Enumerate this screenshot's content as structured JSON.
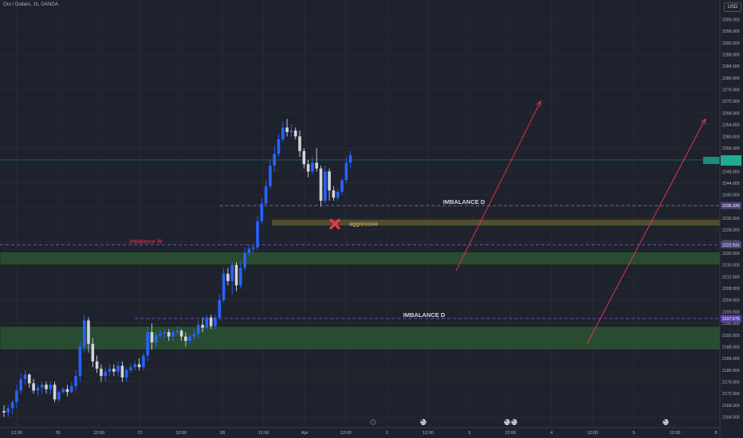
{
  "symbol_title": "Oro / Dollaro, 1h, OANDA",
  "currency": "USD",
  "colors": {
    "background": "#1e222d",
    "grid": "#262a34",
    "up": "#2962ff",
    "down": "#d1d4dc",
    "zone": "#2e5a33",
    "aggressive_zone": "#5b5533",
    "dashed": "#7e57c2",
    "imbalance_w": "#f23645",
    "arrow": "#f23645",
    "current_price": "#22ab94",
    "axis_text": "#b2b5be"
  },
  "chart_data": {
    "type": "candlestick",
    "y_ticks": [
      "2164.000",
      "2168.000",
      "2172.000",
      "2176.000",
      "2180.000",
      "2184.000",
      "2188.000",
      "2192.000",
      "2196.000",
      "2200.000",
      "2204.000",
      "2208.000",
      "2212.000",
      "2216.000",
      "2220.000",
      "2224.000",
      "2228.000",
      "2232.000",
      "2236.000",
      "2240.000",
      "2244.000",
      "2248.000",
      "2252.000",
      "2256.000",
      "2260.000",
      "2264.000",
      "2268.000",
      "2272.000",
      "2276.000",
      "2280.000",
      "2284.000",
      "2288.000",
      "2292.000",
      "2296.000",
      "2300.000"
    ],
    "ylim": [
      2162.5,
      2301.5
    ],
    "x_ticks": [
      "12:00",
      "26",
      "12:00",
      "27",
      "12:00",
      "28",
      "12:00",
      "Apr",
      "12:00",
      "2",
      "12:00",
      "3",
      "12:00",
      "4",
      "12:00",
      "5",
      "12:00",
      "8"
    ],
    "x_range": [
      0,
      90
    ],
    "candles": [
      [
        0,
        2166,
        2168,
        2164,
        2165.5
      ],
      [
        1,
        2165.5,
        2168,
        2164,
        2167
      ],
      [
        2,
        2167,
        2170,
        2165,
        2169
      ],
      [
        3,
        2169,
        2175,
        2167,
        2173
      ],
      [
        4,
        2173,
        2179,
        2172,
        2177
      ],
      [
        5,
        2177,
        2180,
        2175,
        2178.5
      ],
      [
        6,
        2178.5,
        2179,
        2174,
        2175.5
      ],
      [
        7,
        2175.5,
        2177,
        2172,
        2173
      ],
      [
        8,
        2173,
        2175,
        2171,
        2174
      ],
      [
        9,
        2174,
        2176,
        2172,
        2175
      ],
      [
        10,
        2175,
        2176,
        2172,
        2173.5
      ],
      [
        11,
        2173.5,
        2176,
        2172,
        2175
      ],
      [
        12,
        2175,
        2176,
        2169,
        2170
      ],
      [
        13,
        2170,
        2173,
        2169,
        2172.5
      ],
      [
        14,
        2172.5,
        2174,
        2172,
        2173.5
      ],
      [
        15,
        2173.5,
        2175,
        2171,
        2172.5
      ],
      [
        16,
        2172.5,
        2176,
        2172,
        2174.5
      ],
      [
        17,
        2174.5,
        2180,
        2173,
        2178
      ],
      [
        18,
        2178,
        2190,
        2176,
        2188
      ],
      [
        19,
        2188,
        2199,
        2186,
        2197
      ],
      [
        20,
        2197,
        2198,
        2186,
        2189
      ],
      [
        21,
        2189,
        2191,
        2181,
        2183
      ],
      [
        22,
        2183,
        2185,
        2179,
        2180.5
      ],
      [
        23,
        2180.5,
        2182,
        2176,
        2178
      ],
      [
        24,
        2178,
        2181,
        2176,
        2179.5
      ],
      [
        25,
        2179.5,
        2182,
        2178,
        2180.5
      ],
      [
        26,
        2180.5,
        2182,
        2178,
        2179.5
      ],
      [
        27,
        2179.5,
        2183,
        2178,
        2181.5
      ],
      [
        28,
        2181.5,
        2183,
        2176,
        2177.5
      ],
      [
        29,
        2177.5,
        2181,
        2176,
        2180
      ],
      [
        30,
        2180,
        2182,
        2179,
        2181
      ],
      [
        31,
        2181,
        2183,
        2180,
        2182
      ],
      [
        32,
        2182,
        2184,
        2180,
        2181
      ],
      [
        33,
        2181,
        2186,
        2180,
        2185
      ],
      [
        34,
        2185,
        2195,
        2183,
        2193
      ],
      [
        35,
        2193,
        2196,
        2187,
        2189.5
      ],
      [
        36,
        2189.5,
        2193,
        2188,
        2192
      ],
      [
        37,
        2192,
        2194,
        2191,
        2192.5
      ],
      [
        38,
        2192.5,
        2194,
        2191,
        2193
      ],
      [
        39,
        2193,
        2194,
        2190,
        2191.5
      ],
      [
        40,
        2191.5,
        2194,
        2190,
        2193
      ],
      [
        41,
        2193,
        2195,
        2192,
        2193.5
      ],
      [
        42,
        2193.5,
        2194,
        2190,
        2191.5
      ],
      [
        43,
        2191.5,
        2193,
        2188,
        2190
      ],
      [
        44,
        2190,
        2192,
        2189,
        2191.5
      ],
      [
        45,
        2191.5,
        2194,
        2190,
        2192.5
      ],
      [
        46,
        2192.5,
        2197,
        2191,
        2195.5
      ],
      [
        47,
        2195.5,
        2198,
        2193,
        2194.5
      ],
      [
        48,
        2194.5,
        2199,
        2194,
        2198
      ],
      [
        49,
        2198,
        2199,
        2194,
        2195
      ],
      [
        50,
        2195,
        2199,
        2194,
        2198
      ],
      [
        51,
        2198,
        2206,
        2197,
        2204
      ],
      [
        52,
        2204,
        2215,
        2203,
        2213
      ],
      [
        53,
        2213,
        2215,
        2209,
        2210.5
      ],
      [
        54,
        2210.5,
        2217,
        2206,
        2216
      ],
      [
        55,
        2216,
        2217,
        2207,
        2209
      ],
      [
        56,
        2209,
        2217,
        2208,
        2215
      ],
      [
        57,
        2215,
        2222,
        2214,
        2220
      ],
      [
        58,
        2220,
        2223,
        2219,
        2221.5
      ],
      [
        59,
        2221.5,
        2223,
        2220,
        2222
      ],
      [
        60,
        2222,
        2233,
        2221,
        2231
      ],
      [
        61,
        2231,
        2239,
        2230,
        2237
      ],
      [
        62,
        2237,
        2245,
        2236,
        2243
      ],
      [
        63,
        2243,
        2252,
        2242,
        2250
      ],
      [
        64,
        2250,
        2257,
        2248,
        2254
      ],
      [
        65,
        2254,
        2261,
        2253,
        2259
      ],
      [
        66,
        2259,
        2265,
        2258,
        2263
      ],
      [
        67,
        2263,
        2266,
        2260,
        2261.5
      ],
      [
        68,
        2261.5,
        2264,
        2260,
        2262
      ],
      [
        69,
        2262,
        2263,
        2259,
        2260
      ],
      [
        70,
        2260,
        2262,
        2253,
        2255
      ],
      [
        71,
        2255,
        2256,
        2249,
        2250.5
      ],
      [
        72,
        2250.5,
        2252,
        2246,
        2248
      ],
      [
        73,
        2248,
        2253,
        2247,
        2251
      ],
      [
        74,
        2251,
        2256,
        2248,
        2249
      ],
      [
        75,
        2249,
        2250,
        2236,
        2238
      ],
      [
        76,
        2238,
        2250,
        2237,
        2248
      ],
      [
        77,
        2248,
        2249,
        2238,
        2241.5
      ],
      [
        78,
        2241.5,
        2243,
        2238,
        2239
      ],
      [
        79,
        2239,
        2242,
        2238,
        2241
      ],
      [
        80,
        2241,
        2246,
        2240,
        2245
      ],
      [
        81,
        2245,
        2253,
        2244,
        2251
      ],
      [
        82,
        2251,
        2255,
        2249,
        2253.5
      ]
    ],
    "current_price": 2251.9,
    "labeled_prices": [
      "2236.330",
      "2222.915",
      "2197.675"
    ],
    "annotations": [
      {
        "text": "IMBALANCE D",
        "type": "dashed-line",
        "price": 2236.33,
        "from_candle": 51,
        "to_candle": 150
      },
      {
        "text": "imbalance W",
        "type": "dashed-line",
        "price": 2222.915,
        "from_candle": 0,
        "to_candle": 150
      },
      {
        "text": "IMBALANCE D",
        "type": "dashed-line",
        "price": 2197.675,
        "from_candle": 31,
        "to_candle": 150
      },
      {
        "text": "aggressive",
        "type": "zone",
        "from_price": 2229.5,
        "to_price": 2231.5,
        "from_candle": 64,
        "to_candle": 150
      },
      {
        "type": "zone",
        "from_price": 2216,
        "to_price": 2220.5,
        "from_candle": 0,
        "to_candle": 150
      },
      {
        "type": "zone",
        "from_price": 2187,
        "to_price": 2195,
        "from_candle": 0,
        "to_candle": 150
      }
    ],
    "arrows": [
      {
        "from": [
          107,
          2214
        ],
        "to": [
          127,
          2272
        ]
      },
      {
        "from": [
          138,
          2189
        ],
        "to": [
          166,
          2266
        ]
      }
    ],
    "x_marker_price": 2230
  }
}
